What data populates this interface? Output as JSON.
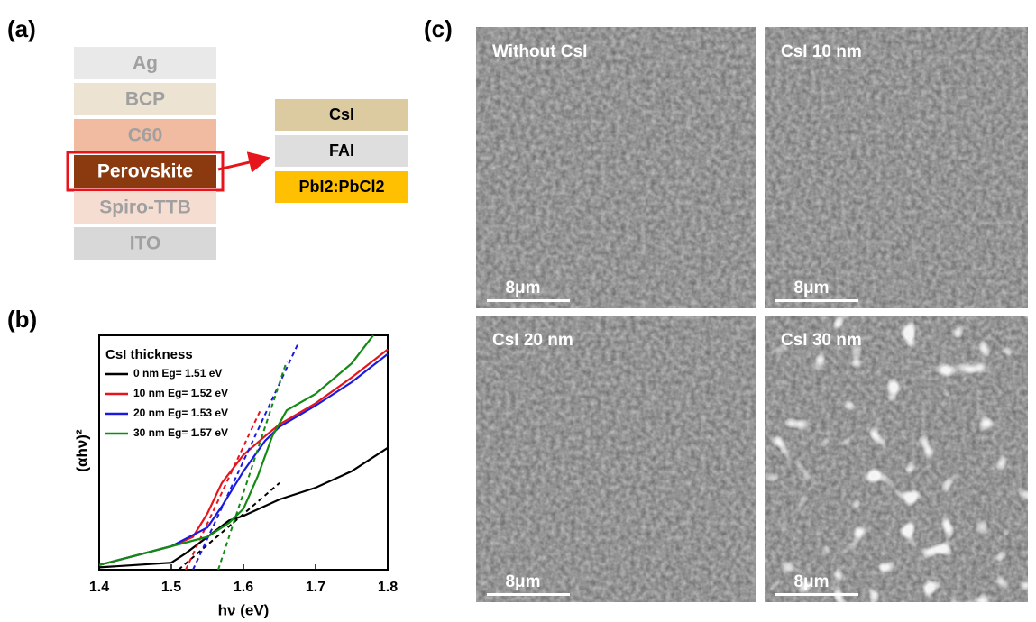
{
  "panel_labels": [
    "(a)",
    "(b)",
    "(c)"
  ],
  "panel_a": {
    "layers": [
      "Ag",
      "BCP",
      "C60",
      "Perovskite",
      "Spiro-TTB",
      "ITO"
    ],
    "perovskite_layers": [
      "CsI",
      "FAI",
      "PbI2:PbCl2"
    ]
  },
  "chart_data": {
    "type": "line",
    "x_label": "hν (eV)",
    "y_label": "(αhν)²",
    "legend_title": "CsI thickness",
    "xlim": [
      1.4,
      1.8
    ],
    "xticks": [
      1.4,
      1.5,
      1.6,
      1.7,
      1.8
    ],
    "ylim": [
      0,
      1
    ],
    "series": [
      {
        "name": "0 nm Eg= 1.51 eV",
        "color": "#000000",
        "x": [
          1.4,
          1.5,
          1.52,
          1.55,
          1.58,
          1.6,
          1.65,
          1.7,
          1.75,
          1.8
        ],
        "values": [
          0.01,
          0.03,
          0.07,
          0.14,
          0.21,
          0.23,
          0.3,
          0.35,
          0.42,
          0.52
        ],
        "fit_x": [
          1.51,
          1.65
        ],
        "fit_values": [
          0,
          0.37
        ]
      },
      {
        "name": "10 nm Eg= 1.52 eV",
        "color": "#e8141b",
        "x": [
          1.4,
          1.45,
          1.5,
          1.53,
          1.55,
          1.57,
          1.6,
          1.63,
          1.65,
          1.7,
          1.75,
          1.8
        ],
        "values": [
          0.02,
          0.06,
          0.1,
          0.14,
          0.24,
          0.37,
          0.49,
          0.57,
          0.62,
          0.71,
          0.82,
          0.94
        ],
        "fit_x": [
          1.52,
          1.625
        ],
        "fit_values": [
          0,
          0.69
        ]
      },
      {
        "name": "20 nm Eg= 1.53 eV",
        "color": "#1a1adf",
        "x": [
          1.4,
          1.45,
          1.5,
          1.55,
          1.57,
          1.6,
          1.63,
          1.65,
          1.7,
          1.75,
          1.8
        ],
        "values": [
          0.02,
          0.06,
          0.1,
          0.18,
          0.27,
          0.42,
          0.55,
          0.61,
          0.7,
          0.8,
          0.92
        ],
        "fit_x": [
          1.53,
          1.675
        ],
        "fit_values": [
          0,
          0.96
        ]
      },
      {
        "name": "30 nm Eg= 1.57 eV",
        "color": "#138a13",
        "x": [
          1.4,
          1.45,
          1.5,
          1.55,
          1.58,
          1.6,
          1.62,
          1.64,
          1.66,
          1.7,
          1.75,
          1.78
        ],
        "values": [
          0.02,
          0.06,
          0.1,
          0.14,
          0.2,
          0.26,
          0.4,
          0.57,
          0.68,
          0.75,
          0.88,
          1.0
        ],
        "fit_x": [
          1.565,
          1.66
        ],
        "fit_values": [
          0,
          0.89
        ]
      }
    ]
  },
  "panel_c": {
    "images": [
      {
        "label": "Without CsI",
        "scale_bar": "8μm"
      },
      {
        "label": "CsI 10 nm",
        "scale_bar": "8μm"
      },
      {
        "label": "CsI 20 nm",
        "scale_bar": "8μm"
      },
      {
        "label": "CsI 30 nm",
        "scale_bar": "8μm"
      }
    ]
  }
}
